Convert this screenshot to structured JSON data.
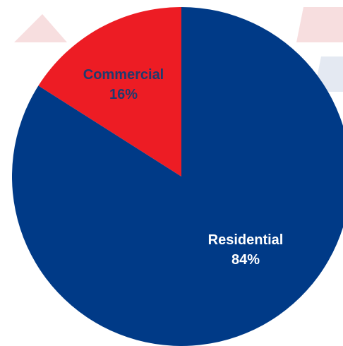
{
  "chart_data": {
    "type": "pie",
    "title": "",
    "slices": [
      {
        "label": "Commercial",
        "value": 16,
        "display": "16%",
        "color": "#ed1c24",
        "text_color": "#1f3a6e"
      },
      {
        "label": "Residential",
        "value": 84,
        "display": "84%",
        "color": "#003a87",
        "text_color": "#ffffff"
      }
    ],
    "start_angle_deg": 0,
    "direction": "counterclockwise",
    "legend": "none",
    "data_labels": "inside"
  },
  "colors": {
    "background": "#ffffff",
    "watermark": "#e4e9f2",
    "watermark_red": "#f7dedf"
  }
}
